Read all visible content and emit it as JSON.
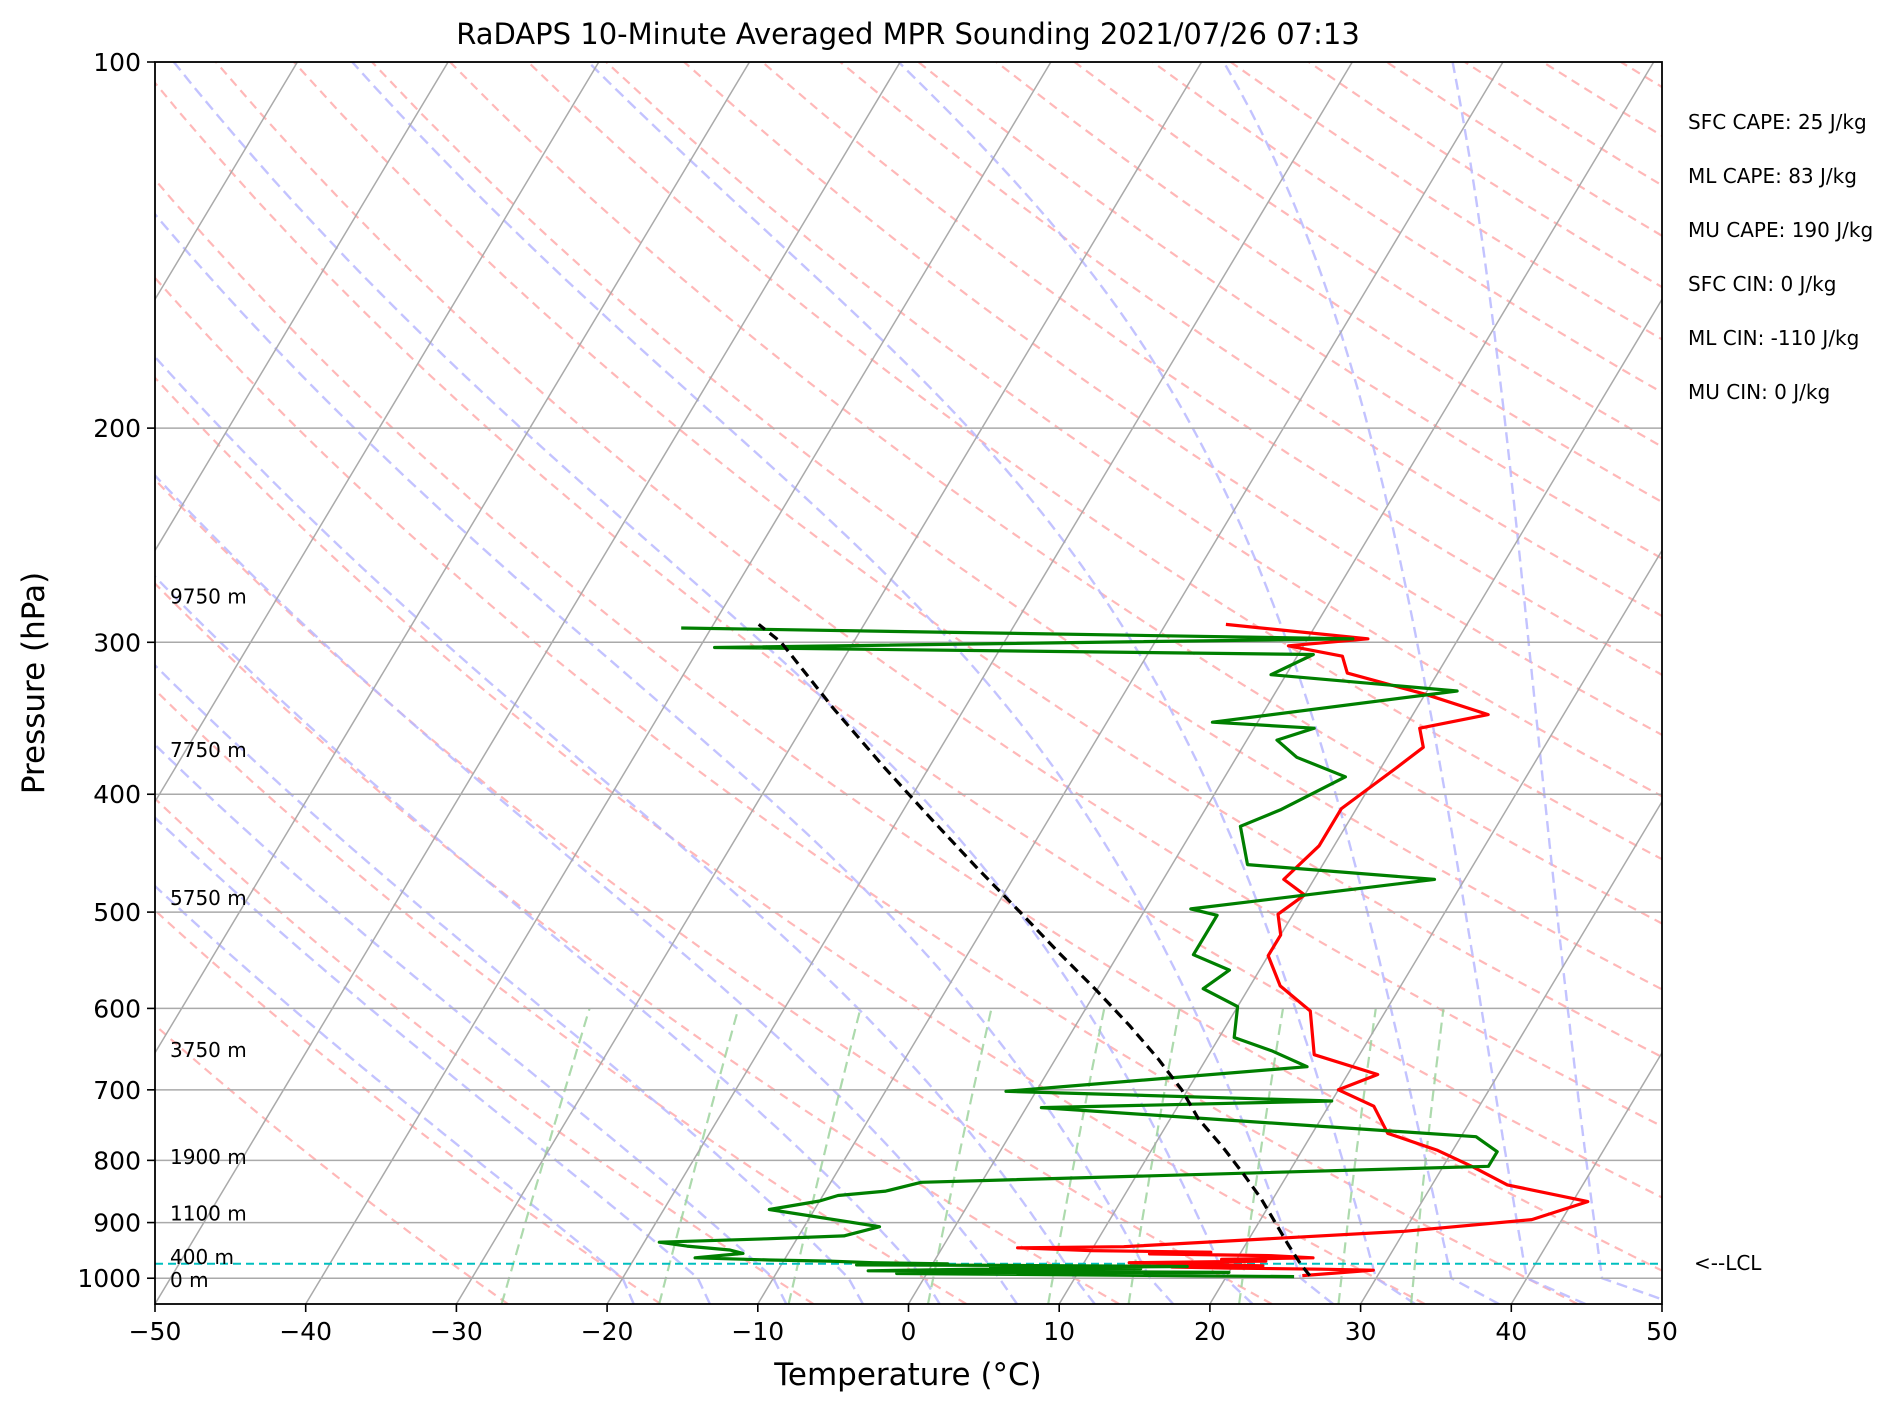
{
  "chart_data": {
    "type": "line",
    "title": "RaDAPS 10-Minute Averaged MPR Sounding 2021/07/26 07:13",
    "xlabel": "Temperature (°C)",
    "ylabel": "Pressure (hPa)",
    "xlim": [
      -50,
      50
    ],
    "ylim": [
      1050,
      100
    ],
    "y_scale": "log",
    "skew_t": true,
    "x_ticks": [
      "−50",
      "−40",
      "−30",
      "−20",
      "−10",
      "0",
      "10",
      "20",
      "30",
      "40",
      "50"
    ],
    "x_tick_values": [
      -50,
      -40,
      -30,
      -20,
      -10,
      0,
      10,
      20,
      30,
      40,
      50
    ],
    "y_ticks": [
      "100",
      "200",
      "300",
      "400",
      "500",
      "600",
      "700",
      "800",
      "900",
      "1000"
    ],
    "y_tick_values": [
      100,
      200,
      300,
      400,
      500,
      600,
      700,
      800,
      900,
      1000
    ],
    "grid": true,
    "colors": {
      "temperature": "#ff0000",
      "dewpoint": "#007f00",
      "parcel": "#000000",
      "lcl": "#00bfbf",
      "isotherm": "#aaaaaa",
      "dry_adiabat": "#ffb0b0",
      "moist_adiabat": "#b8b8ff",
      "mixing_ratio": "#9fd49f"
    },
    "series": [
      {
        "key": "temperature",
        "points": [
          [
            25.0,
            995
          ],
          [
            29.5,
            985
          ],
          [
            26,
            983
          ],
          [
            20,
            981
          ],
          [
            16,
            979
          ],
          [
            22,
            977
          ],
          [
            18,
            974
          ],
          [
            13,
            971
          ],
          [
            22,
            968
          ],
          [
            19,
            965
          ],
          [
            25,
            962
          ],
          [
            22,
            958
          ],
          [
            14,
            955
          ],
          [
            18,
            952
          ],
          [
            10,
            949
          ],
          [
            5,
            944
          ],
          [
            12,
            942
          ],
          [
            20,
            930
          ],
          [
            30,
            915
          ],
          [
            38,
            895
          ],
          [
            41,
            865
          ],
          [
            35,
            838
          ],
          [
            32,
            810
          ],
          [
            29,
            785
          ],
          [
            25,
            760
          ],
          [
            23,
            722
          ],
          [
            20,
            700
          ],
          [
            22,
            680
          ],
          [
            17,
            655
          ],
          [
            15,
            603
          ],
          [
            12,
            575
          ],
          [
            10,
            543
          ],
          [
            10,
            522
          ],
          [
            9,
            502
          ],
          [
            10,
            484
          ],
          [
            8,
            470
          ],
          [
            9,
            441
          ],
          [
            9,
            411
          ],
          [
            11,
            381
          ],
          [
            12,
            366
          ],
          [
            11,
            353
          ],
          [
            15,
            344
          ],
          [
            10,
            331
          ],
          [
            4,
            318
          ],
          [
            3,
            308
          ],
          [
            -1,
            302
          ],
          [
            4,
            298
          ],
          [
            -6,
            290
          ]
        ]
      },
      {
        "key": "dewpoint",
        "points": [
          [
            24.5,
            997
          ],
          [
            -2,
            991
          ],
          [
            20,
            989
          ],
          [
            -4,
            986
          ],
          [
            3,
            983
          ],
          [
            14,
            982
          ],
          [
            4,
            980
          ],
          [
            17,
            978
          ],
          [
            5,
            976
          ],
          [
            -5,
            975
          ],
          [
            1,
            973
          ],
          [
            -4,
            971
          ],
          [
            -7,
            968
          ],
          [
            -11,
            966
          ],
          [
            -11,
            966
          ],
          [
            -16,
            962
          ],
          [
            -13,
            954
          ],
          [
            -14,
            948
          ],
          [
            -17,
            941
          ],
          [
            -19,
            934
          ],
          [
            -12,
            928
          ],
          [
            -7,
            923
          ],
          [
            -5,
            907
          ],
          [
            -13,
            878
          ],
          [
            -10,
            864
          ],
          [
            -9,
            855
          ],
          [
            -6,
            848
          ],
          [
            -4,
            834
          ],
          [
            33,
            809
          ],
          [
            33,
            799
          ],
          [
            33,
            787
          ],
          [
            31,
            765
          ],
          [
            1,
            724
          ],
          [
            20,
            715
          ],
          [
            -2,
            702
          ],
          [
            17,
            670
          ],
          [
            14,
            650
          ],
          [
            11,
            634
          ],
          [
            10,
            598
          ],
          [
            7,
            578
          ],
          [
            8,
            558
          ],
          [
            5,
            542
          ],
          [
            5,
            526
          ],
          [
            5,
            503
          ],
          [
            3,
            497
          ],
          [
            18,
            470
          ],
          [
            5,
            457
          ],
          [
            3,
            425
          ],
          [
            5,
            412
          ],
          [
            8,
            387
          ],
          [
            4,
            373
          ],
          [
            2,
            361
          ],
          [
            4,
            353
          ],
          [
            -3,
            349
          ],
          [
            12,
            329
          ],
          [
            -1,
            319
          ],
          [
            1,
            307
          ],
          [
            -39,
            303
          ],
          [
            3,
            298
          ],
          [
            -42,
            292
          ]
        ]
      },
      {
        "key": "parcel",
        "points": [
          [
            25.5,
            995
          ],
          [
            24.5,
            975
          ],
          [
            22.9,
            940
          ],
          [
            21.1,
            900
          ],
          [
            19.2,
            860
          ],
          [
            17.0,
            820
          ],
          [
            14.6,
            780
          ],
          [
            11.9,
            740
          ],
          [
            9.6,
            700
          ],
          [
            6.8,
            660
          ],
          [
            3.6,
            620
          ],
          [
            0.0,
            580
          ],
          [
            -4.0,
            540
          ],
          [
            -8.2,
            500
          ],
          [
            -12.8,
            460
          ],
          [
            -17.7,
            420
          ],
          [
            -23.0,
            380
          ],
          [
            -28.7,
            340
          ],
          [
            -34.8,
            300
          ],
          [
            -37.0,
            290
          ]
        ]
      }
    ],
    "lcl_pressure": 973,
    "lcl_label": "<--LCL",
    "height_labels": [
      {
        "text": "9750 m",
        "p": 275
      },
      {
        "text": "7750 m",
        "p": 368
      },
      {
        "text": "5750 m",
        "p": 487
      },
      {
        "text": "3750 m",
        "p": 649
      },
      {
        "text": "1900 m",
        "p": 795
      },
      {
        "text": "1100 m",
        "p": 885
      },
      {
        "text": "400 m",
        "p": 961
      },
      {
        "text": "0 m",
        "p": 1003
      }
    ],
    "annotations": [
      "SFC CAPE: 25 J/kg",
      "ML CAPE: 83 J/kg",
      "MU CAPE: 190 J/kg",
      "SFC CIN: 0 J/kg",
      "ML CIN: -110 J/kg",
      "MU CIN: 0 J/kg"
    ]
  }
}
